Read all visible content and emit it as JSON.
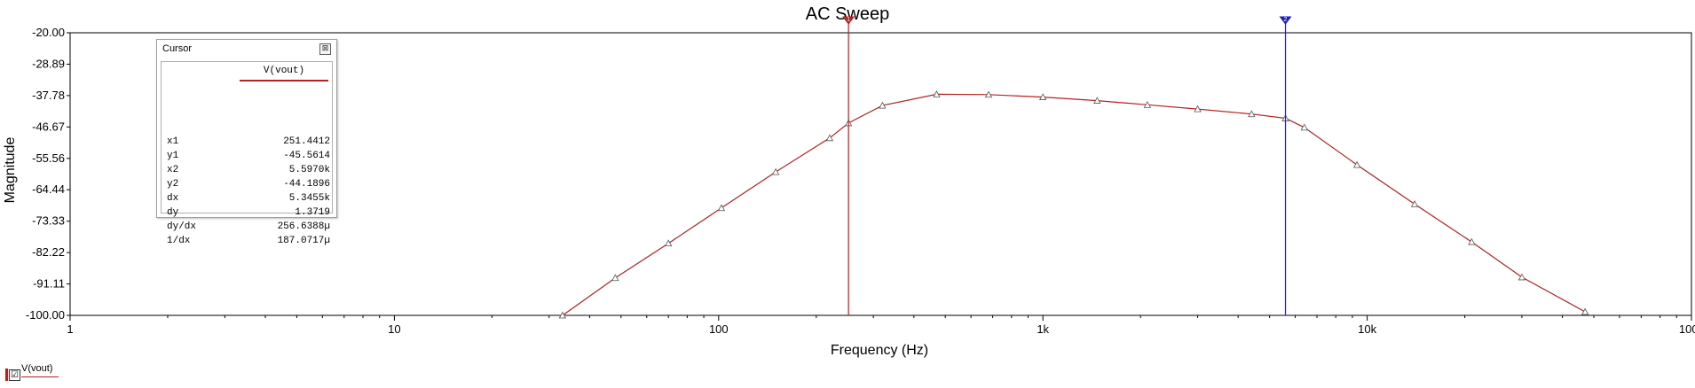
{
  "chart_data": {
    "type": "line",
    "title": "AC Sweep",
    "xlabel": "Frequency (Hz)",
    "ylabel": "Magnitude",
    "x_scale": "log",
    "xlim": [
      1,
      100000
    ],
    "ylim": [
      -100,
      -20
    ],
    "x_ticks": [
      1,
      10,
      100,
      1000,
      10000,
      100000
    ],
    "x_tick_labels": [
      "1",
      "10",
      "100",
      "1k",
      "10k",
      "100k"
    ],
    "y_ticks": [
      -20,
      -28.89,
      -37.78,
      -46.67,
      -55.56,
      -64.44,
      -73.33,
      -82.22,
      -91.11,
      -100
    ],
    "y_tick_labels": [
      "-20.00",
      "-28.89",
      "-37.78",
      "-46.67",
      "-55.56",
      "-64.44",
      "-73.33",
      "-82.22",
      "-91.11",
      "-100.00"
    ],
    "grid": false,
    "series": [
      {
        "name": "V(vout)",
        "color": "#b22222",
        "x": [
          33,
          48,
          70,
          102,
          150,
          220,
          251.44,
          320,
          470,
          680,
          1000,
          1470,
          2100,
          3000,
          4400,
          5597,
          6400,
          9300,
          14000,
          21000,
          30000,
          47000
        ],
        "y": [
          -100,
          -89.4,
          -79.6,
          -69.6,
          -59.4,
          -49.8,
          -45.56,
          -40.6,
          -37.4,
          -37.5,
          -38.2,
          -39.2,
          -40.4,
          -41.6,
          -43.0,
          -44.19,
          -46.8,
          -57.4,
          -68.5,
          -79.2,
          -89.2,
          -99.0
        ]
      }
    ],
    "cursors": [
      {
        "name": "cursor-1",
        "label": "1",
        "x": 251.4412,
        "color": "#b22222"
      },
      {
        "name": "cursor-2",
        "label": "2",
        "x": 5597.0,
        "color": "#1f1fb0"
      }
    ]
  },
  "cursor_box": {
    "title": "Cursor",
    "close_glyph": "⊠",
    "column": "V(vout)",
    "rows": [
      {
        "label": "x1",
        "value": "251.4412"
      },
      {
        "label": "y1",
        "value": "-45.5614"
      },
      {
        "label": "x2",
        "value": "5.5970k"
      },
      {
        "label": "y2",
        "value": "-44.1896"
      },
      {
        "label": "dx",
        "value": "5.3455k"
      },
      {
        "label": "dy",
        "value": "1.3719"
      },
      {
        "label": "dy/dx",
        "value": "256.6388µ"
      },
      {
        "label": "1/dx",
        "value": "187.0717µ"
      }
    ]
  },
  "legend": {
    "label": "V(vout)",
    "checked_glyph": "☑"
  }
}
